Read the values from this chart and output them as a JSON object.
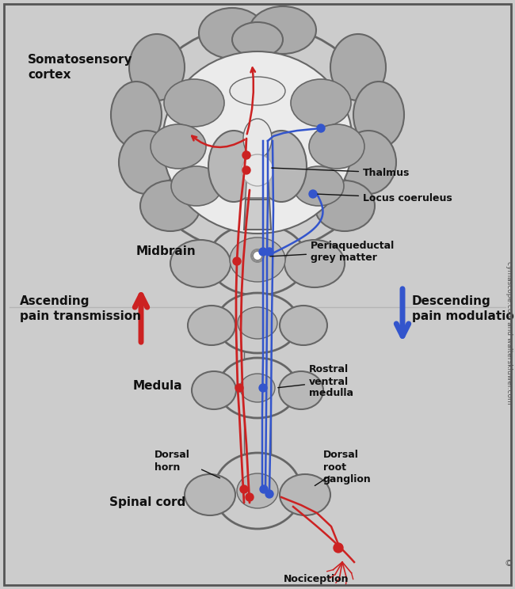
{
  "bg_outer": "#cccccc",
  "bg_inner": "#e8e8e8",
  "gray_outer": "#aaaaaa",
  "gray_mid": "#b8b8b8",
  "gray_light": "#cccccc",
  "gray_inner": "#d5d5d5",
  "white_struct": "#e8e8e8",
  "very_light": "#ebebeb",
  "red": "#cc2222",
  "blue": "#3355cc",
  "black": "#111111",
  "line_color": "#666666",
  "labels": {
    "somatosensory": "Somatosensory\ncortex",
    "thalmus": "Thalmus",
    "locus": "Locus coeruleus",
    "periaqueductal": "Periaqueductal\ngrey matter",
    "midbrain": "Midbrain",
    "ascending": "Ascending\npain transmission",
    "descending": "Descending\npain modulation",
    "medula": "Medula",
    "rostral": "Rostral\nventral\nmedulla",
    "dorsal_horn": "Dorsal\nhorn",
    "spinal_cord": "Spinal cord",
    "dorsal_root": "Dorsal\nroot\nganglion",
    "nociception": "Nociception",
    "copyright": "cymascope.com and walterskluwer.com"
  }
}
